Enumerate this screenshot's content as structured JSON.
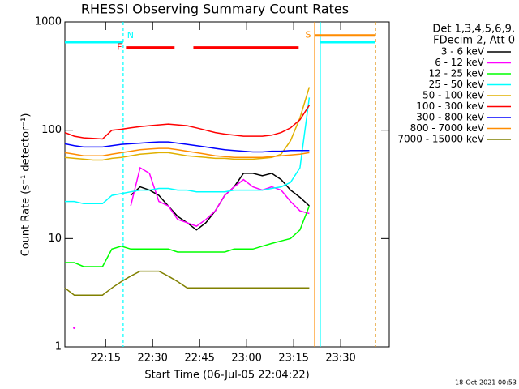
{
  "chart_data": {
    "type": "line",
    "title": "RHESSI Observing Summary Count Rates",
    "x_label": "Start Time (06-Jul-05 22:04:22)",
    "y_label": "Count Rate (s⁻¹ detector⁻¹)",
    "legend_header": [
      "Det 1,3,4,5,6,9,",
      "FDecim 2, Att 0"
    ],
    "footer": "18-Oct-2021 00:53",
    "ylog": true,
    "ylim": [
      1,
      1000
    ],
    "yticks": [
      1,
      10,
      100,
      1000
    ],
    "xlim": [
      1322,
      1425.5
    ],
    "xticks": [
      {
        "value": 1335,
        "label": "22:15"
      },
      {
        "value": 1350,
        "label": "22:30"
      },
      {
        "value": 1365,
        "label": "22:45"
      },
      {
        "value": 1380,
        "label": "23:00"
      },
      {
        "value": 1395,
        "label": "23:15"
      },
      {
        "value": 1410,
        "label": "23:30"
      }
    ],
    "x": [
      1322,
      1325,
      1328,
      1331,
      1334,
      1337,
      1340,
      1343,
      1346,
      1349,
      1352,
      1355,
      1358,
      1361,
      1364,
      1367,
      1370,
      1373,
      1376,
      1379,
      1382,
      1385,
      1388,
      1391,
      1394,
      1397,
      1400
    ],
    "series": [
      {
        "name": "3 - 6 keV",
        "color": "#000000",
        "values": [
          null,
          null,
          null,
          null,
          null,
          null,
          null,
          25,
          30,
          28,
          25,
          20,
          16,
          14,
          12,
          14,
          18,
          25,
          30,
          40,
          40,
          38,
          40,
          35,
          28,
          24,
          20
        ]
      },
      {
        "name": "6 - 12 keV",
        "color": "#ff00ff",
        "values": [
          null,
          1.5,
          null,
          null,
          null,
          null,
          null,
          20,
          45,
          40,
          22,
          20,
          15,
          14,
          13,
          15,
          18,
          25,
          30,
          35,
          30,
          28,
          30,
          28,
          22,
          18,
          17
        ]
      },
      {
        "name": "12 - 25 keV",
        "color": "#00ff00",
        "values": [
          6,
          6,
          5.5,
          5.5,
          5.5,
          8,
          8.5,
          8,
          8,
          8,
          8,
          8,
          7.5,
          7.5,
          7.5,
          7.5,
          7.5,
          7.5,
          8,
          8,
          8,
          8.5,
          9,
          9.5,
          10,
          12,
          20
        ]
      },
      {
        "name": "25 - 50 keV",
        "color": "#00ffff",
        "values": [
          22,
          22,
          21,
          21,
          21,
          25,
          26,
          27,
          28,
          28,
          29,
          29,
          28,
          28,
          27,
          27,
          27,
          27,
          28,
          28,
          28,
          28,
          29,
          30,
          33,
          45,
          200
        ]
      },
      {
        "name": "50 - 100 keV",
        "color": "#e0b000",
        "values": [
          56,
          55,
          54,
          53,
          53,
          55,
          56,
          58,
          60,
          61,
          62,
          62,
          60,
          58,
          57,
          56,
          55,
          55,
          54,
          54,
          54,
          55,
          56,
          60,
          80,
          130,
          250
        ]
      },
      {
        "name": "100 - 300 keV",
        "color": "#ff0000",
        "values": [
          95,
          88,
          85,
          84,
          83,
          100,
          102,
          105,
          108,
          110,
          112,
          114,
          112,
          110,
          105,
          100,
          95,
          92,
          90,
          88,
          88,
          88,
          90,
          95,
          105,
          125,
          170
        ]
      },
      {
        "name": "300 - 800 keV",
        "color": "#0000ff",
        "values": [
          75,
          72,
          70,
          70,
          70,
          72,
          74,
          75,
          76,
          77,
          78,
          78,
          76,
          74,
          72,
          70,
          68,
          66,
          65,
          64,
          63,
          63,
          64,
          64,
          65,
          65,
          65
        ]
      },
      {
        "name": "800 - 7000 keV",
        "color": "#ff8c00",
        "values": [
          62,
          60,
          58,
          58,
          58,
          60,
          62,
          64,
          66,
          67,
          68,
          68,
          66,
          64,
          62,
          60,
          58,
          57,
          56,
          56,
          56,
          56,
          57,
          58,
          59,
          60,
          62
        ]
      },
      {
        "name": "7000 - 15000 keV",
        "color": "#808000",
        "values": [
          3.5,
          3,
          3,
          3,
          3,
          3.5,
          4,
          4.5,
          5,
          5,
          5,
          4.5,
          4,
          3.5,
          3.5,
          3.5,
          3.5,
          3.5,
          3.5,
          3.5,
          3.5,
          3.5,
          3.5,
          3.5,
          3.5,
          3.5,
          3.5
        ]
      }
    ],
    "flags": [
      {
        "label": "N",
        "color": "#00ffff",
        "level": 650,
        "segments": [
          [
            1322,
            1340.6
          ],
          [
            1403.5,
            1421.1
          ]
        ]
      },
      {
        "label": "F",
        "color": "#ff0000",
        "level": 580,
        "segments": [
          [
            1341.5,
            1357
          ],
          [
            1363,
            1396.6
          ]
        ]
      },
      {
        "label": "S",
        "color": "#ff8c00",
        "level": 750,
        "segments": [
          [
            1401.7,
            1421.1
          ]
        ]
      }
    ]
  }
}
